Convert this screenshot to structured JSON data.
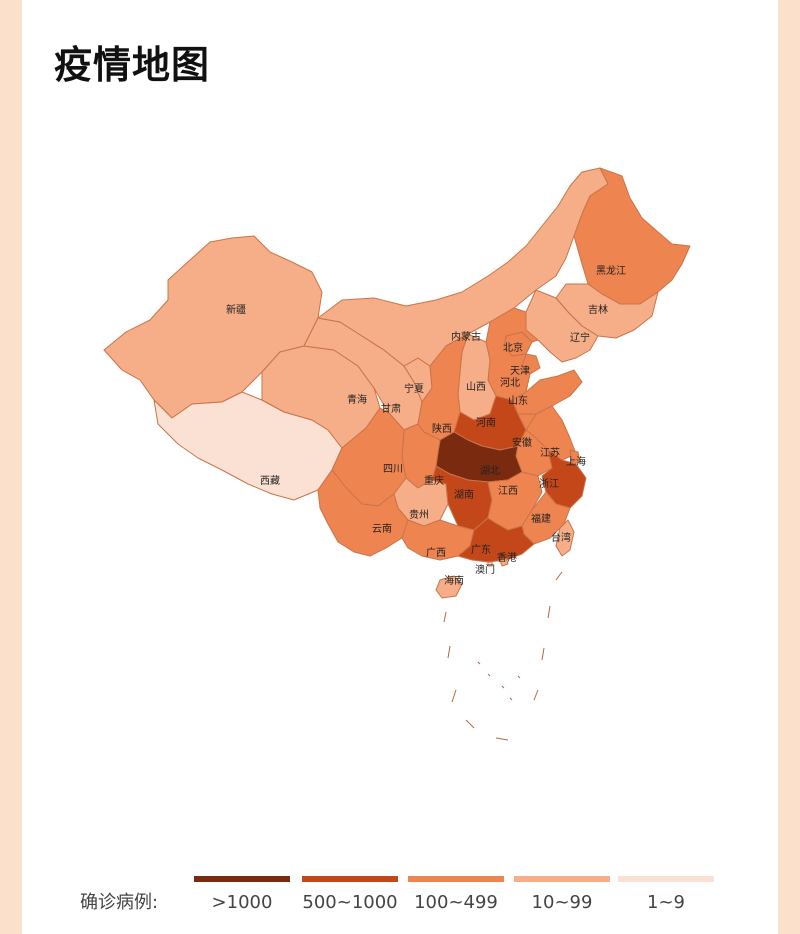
{
  "page": {
    "title": "疫情地图"
  },
  "legend": {
    "title": "确诊病例:",
    "items": [
      {
        "label": ">1000",
        "color": "#7a2a0e"
      },
      {
        "label": "500~1000",
        "color": "#c4471a"
      },
      {
        "label": "100~499",
        "color": "#ee8450"
      },
      {
        "label": "10~99",
        "color": "#f5ae88"
      },
      {
        "label": "1~9",
        "color": "#fbe1d3"
      }
    ]
  },
  "provinces": {
    "xinjiang": {
      "label": "新疆",
      "level": "10~99"
    },
    "xizang": {
      "label": "西藏",
      "level": "1~9"
    },
    "qinghai": {
      "label": "青海",
      "level": "10~99"
    },
    "gansu": {
      "label": "甘肃",
      "level": "10~99"
    },
    "ningxia": {
      "label": "宁夏",
      "level": "10~99"
    },
    "neimenggu": {
      "label": "内蒙古",
      "level": "10~99"
    },
    "heilongjiang": {
      "label": "黑龙江",
      "level": "100~499"
    },
    "jilin": {
      "label": "吉林",
      "level": "10~99"
    },
    "liaoning": {
      "label": "辽宁",
      "level": "10~99"
    },
    "beijing": {
      "label": "北京",
      "level": "100~499"
    },
    "tianjin": {
      "label": "天津",
      "level": "100~499"
    },
    "hebei": {
      "label": "河北",
      "level": "100~499"
    },
    "shanxi": {
      "label": "山西",
      "level": "10~99"
    },
    "shandong": {
      "label": "山东",
      "level": "100~499"
    },
    "shaanxi": {
      "label": "陕西",
      "level": "100~499"
    },
    "henan": {
      "label": "河南",
      "level": "500~1000"
    },
    "anhui": {
      "label": "安徽",
      "level": "100~499"
    },
    "jiangsu": {
      "label": "江苏",
      "level": "100~499"
    },
    "shanghai": {
      "label": "上海",
      "level": "100~499"
    },
    "zhejiang": {
      "label": "浙江",
      "level": "500~1000"
    },
    "hubei": {
      "label": "湖北",
      "level": ">1000"
    },
    "chongqing": {
      "label": "重庆",
      "level": "100~499"
    },
    "sichuan": {
      "label": "四川",
      "level": "100~499"
    },
    "guizhou": {
      "label": "贵州",
      "level": "10~99"
    },
    "hunan": {
      "label": "湖南",
      "level": "500~1000"
    },
    "jiangxi": {
      "label": "江西",
      "level": "100~499"
    },
    "fujian": {
      "label": "福建",
      "level": "100~499"
    },
    "yunnan": {
      "label": "云南",
      "level": "100~499"
    },
    "guangxi": {
      "label": "广西",
      "level": "100~499"
    },
    "guangdong": {
      "label": "广东",
      "level": "500~1000"
    },
    "hongkong": {
      "label": "香港",
      "level": "10~99"
    },
    "macau": {
      "label": "澳门",
      "level": "1~9"
    },
    "taiwan": {
      "label": "台湾",
      "level": "10~99"
    },
    "hainan": {
      "label": "海南",
      "level": "10~99"
    }
  }
}
